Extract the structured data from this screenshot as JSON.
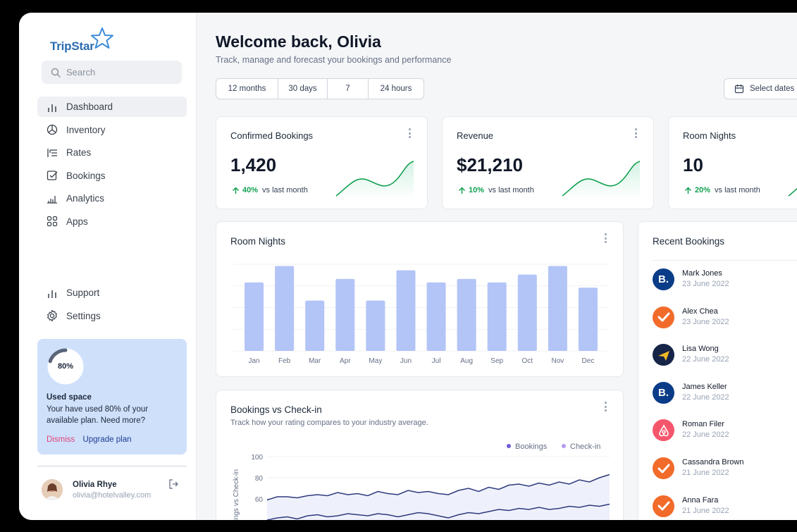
{
  "app": {
    "logo_text": "TripStar"
  },
  "search": {
    "placeholder": "Search"
  },
  "sidebar": {
    "items": [
      {
        "label": "Dashboard",
        "icon": "bar-chart-icon"
      },
      {
        "label": "Inventory",
        "icon": "pie-chart-icon"
      },
      {
        "label": "Rates",
        "icon": "rates-icon"
      },
      {
        "label": "Bookings",
        "icon": "check-square-icon"
      },
      {
        "label": "Analytics",
        "icon": "analytics-icon"
      },
      {
        "label": "Apps",
        "icon": "apps-grid-icon"
      }
    ],
    "bottom_items": [
      {
        "label": "Support",
        "icon": "bar-chart-icon"
      },
      {
        "label": "Settings",
        "icon": "gear-icon"
      }
    ],
    "active_index": 0
  },
  "space": {
    "percent_label": "80%",
    "fraction": 0.8,
    "title": "Used space",
    "text": "Your have used 80% of your available plan. Need more?",
    "dismiss": "Dismiss",
    "upgrade": "Upgrade plan"
  },
  "user": {
    "name": "Olivia Rhye",
    "email": "olivia@hotelvalley.com"
  },
  "header": {
    "title": "Welcome back, Olivia",
    "subtitle": "Track, manage and forecast your bookings and performance",
    "ranges": [
      "12 months",
      "30 days",
      "7 days",
      "24 hours"
    ],
    "date_button": "Select dates"
  },
  "stats": [
    {
      "label": "Confirmed Bookings",
      "value": "1,420",
      "delta": "40%",
      "delta_suffix": "vs last month"
    },
    {
      "label": "Revenue",
      "value": "$21,210",
      "delta": "10%",
      "delta_suffix": "vs last month"
    },
    {
      "label": "Room Nights",
      "value": "10",
      "delta": "20%",
      "delta_suffix": "vs last month"
    }
  ],
  "room_nights": {
    "title": "Room Nights",
    "chart_data": {
      "type": "bar",
      "categories": [
        "Jan",
        "Feb",
        "Mar",
        "Apr",
        "May",
        "Jun",
        "Jul",
        "Aug",
        "Sep",
        "Oct",
        "Nov",
        "Dec"
      ],
      "values": [
        79,
        98,
        58,
        83,
        58,
        93,
        79,
        83,
        79,
        88,
        98,
        73
      ],
      "ylim": [
        0,
        100
      ],
      "color": "#b3c4f7"
    }
  },
  "bookings_vs_checkin": {
    "title": "Bookings vs Check-in",
    "subtitle": "Track how your rating compares to your industry average.",
    "chart_data": {
      "type": "line",
      "ylabel": "Bookings vs Check-in",
      "yticks": [
        60,
        80,
        100
      ],
      "ylim": [
        45,
        105
      ],
      "series": [
        {
          "name": "Bookings",
          "color": "#6f5bd6",
          "values": [
            59,
            62,
            62,
            61,
            63,
            64,
            63,
            66,
            64,
            65,
            63,
            67,
            65,
            64,
            68,
            66,
            67,
            65,
            64,
            68,
            70,
            67,
            71,
            69,
            73,
            74,
            72,
            75,
            73,
            76,
            74,
            78,
            76,
            80,
            83
          ]
        },
        {
          "name": "Check-in",
          "color": "#b59cf0",
          "values": [
            40,
            42,
            43,
            41,
            44,
            45,
            43,
            44,
            46,
            45,
            44,
            46,
            45,
            43,
            45,
            47,
            46,
            44,
            42,
            45,
            47,
            46,
            48,
            50,
            49,
            51,
            50,
            52,
            50,
            51,
            53,
            52,
            54,
            53,
            55
          ]
        }
      ]
    }
  },
  "recent_bookings": {
    "title": "Recent Bookings",
    "items": [
      {
        "name": "Mark Jones",
        "date": "23 June 2022",
        "icon": "booking-com-icon",
        "bg": "#0b3c87"
      },
      {
        "name": "Alex Chea",
        "date": "23 June 2022",
        "icon": "check-badge-icon",
        "bg": "#f26b2a"
      },
      {
        "name": "Lisa Wong",
        "date": "22 June 2022",
        "icon": "plane-icon",
        "bg": "#162447"
      },
      {
        "name": "James Keller",
        "date": "22 June 2022",
        "icon": "booking-com-icon",
        "bg": "#0b3c87"
      },
      {
        "name": "Roman Filer",
        "date": "22 June 2022",
        "icon": "airbnb-icon",
        "bg": "#f6566c"
      },
      {
        "name": "Cassandra Brown",
        "date": "21 June 2022",
        "icon": "check-badge-icon",
        "bg": "#f26b2a"
      },
      {
        "name": "Anna Fara",
        "date": "21 June 2022",
        "icon": "check-badge-icon",
        "bg": "#f26b2a"
      }
    ]
  }
}
